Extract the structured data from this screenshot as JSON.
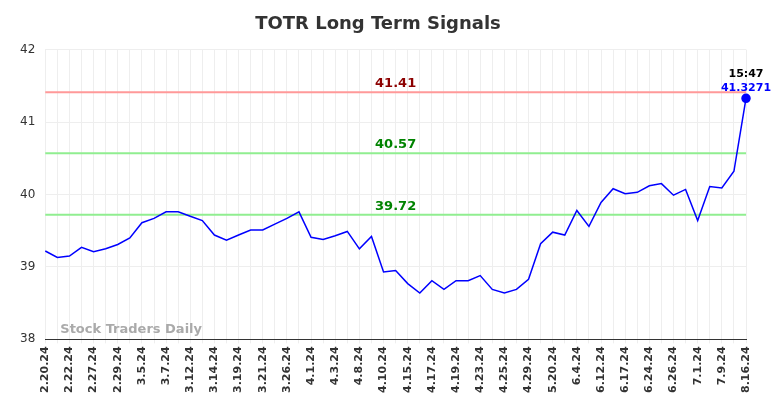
{
  "chart_data": {
    "type": "line",
    "title": "TOTR Long Term Signals",
    "categories": [
      "2.20.24",
      null,
      "2.22.24",
      null,
      "2.27.24",
      null,
      "2.29.24",
      null,
      "3.5.24",
      null,
      "3.7.24",
      null,
      "3.12.24",
      null,
      "3.14.24",
      null,
      "3.19.24",
      null,
      "3.21.24",
      null,
      "3.26.24",
      null,
      "4.1.24",
      null,
      "4.3.24",
      null,
      "4.8.24",
      null,
      "4.10.24",
      null,
      "4.15.24",
      null,
      "4.17.24",
      null,
      "4.19.24",
      null,
      "4.23.24",
      null,
      "4.25.24",
      null,
      "4.29.24",
      null,
      "5.20.24",
      null,
      "6.4.24",
      null,
      "6.12.24",
      null,
      "6.17.24",
      null,
      "6.24.24",
      null,
      "6.26.24",
      null,
      "7.1.24",
      null,
      "7.9.24",
      null,
      "8.16.24"
    ],
    "values": [
      39.22,
      39.13,
      39.15,
      39.27,
      39.21,
      39.25,
      39.31,
      39.4,
      39.61,
      39.67,
      39.76,
      39.76,
      39.7,
      39.64,
      39.44,
      39.37,
      39.44,
      39.51,
      39.51,
      39.59,
      39.67,
      39.76,
      39.41,
      39.38,
      39.43,
      39.49,
      39.25,
      39.42,
      38.93,
      38.95,
      38.77,
      38.64,
      38.81,
      38.69,
      38.81,
      38.81,
      38.88,
      38.69,
      38.64,
      38.69,
      38.83,
      39.32,
      39.48,
      39.44,
      39.78,
      39.56,
      39.89,
      40.08,
      40.01,
      40.03,
      40.12,
      40.15,
      39.99,
      40.07,
      39.64,
      40.11,
      40.09,
      40.32,
      41.3271
    ],
    "color": "#0000ff",
    "ylim": [
      38,
      42
    ],
    "yticks": [
      38,
      39,
      40,
      41,
      42
    ],
    "grid": true,
    "reference_lines": [
      {
        "value": 41.41,
        "color": "#ff9999"
      },
      {
        "value": 40.57,
        "color": "#90ee90"
      },
      {
        "value": 39.72,
        "color": "#90ee90"
      }
    ],
    "annotation": "15:47",
    "watermark": "Stock Traders Daily"
  }
}
